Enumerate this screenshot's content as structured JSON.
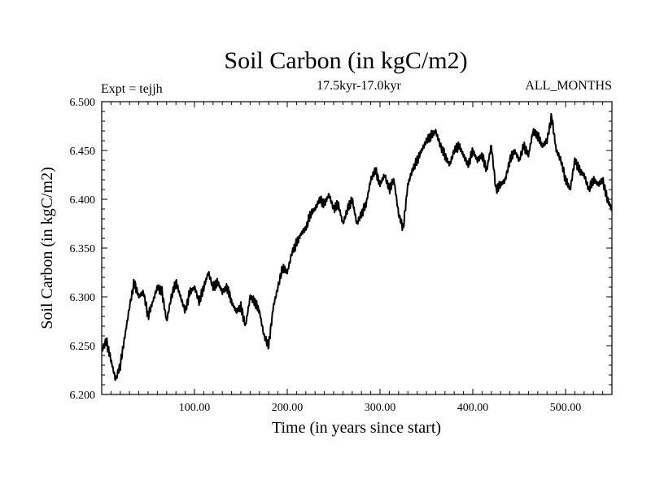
{
  "chart_data": {
    "type": "line",
    "title": "Soil Carbon (in kgC/m2)",
    "subtitle": "17.5kyr-17.0kyr",
    "left_note": "Expt = tejjh",
    "right_note": "ALL_MONTHS",
    "xlabel": "Time (in years since start)",
    "ylabel": "Soil Carbon (in kgC/m2)",
    "xlim": [
      0,
      550
    ],
    "ylim": [
      6.2,
      6.5
    ],
    "x_ticks": [
      100,
      200,
      300,
      400,
      500
    ],
    "x_tick_labels": [
      "100.00",
      "200.00",
      "300.00",
      "400.00",
      "500.00"
    ],
    "y_ticks": [
      6.2,
      6.25,
      6.3,
      6.35,
      6.4,
      6.45,
      6.5
    ],
    "y_tick_labels": [
      "6.200",
      "6.250",
      "6.300",
      "6.350",
      "6.400",
      "6.450",
      "6.500"
    ],
    "grid": false,
    "series": [
      {
        "name": "Soil Carbon",
        "color": "#000000",
        "x": [
          0,
          5,
          10,
          15,
          20,
          25,
          30,
          35,
          40,
          45,
          50,
          55,
          60,
          65,
          70,
          75,
          80,
          85,
          90,
          95,
          100,
          105,
          110,
          115,
          120,
          125,
          130,
          135,
          140,
          145,
          150,
          155,
          160,
          165,
          170,
          175,
          180,
          185,
          190,
          195,
          200,
          205,
          210,
          215,
          220,
          225,
          230,
          235,
          240,
          245,
          250,
          255,
          260,
          265,
          270,
          275,
          280,
          285,
          290,
          295,
          300,
          305,
          310,
          315,
          320,
          325,
          330,
          335,
          340,
          345,
          350,
          355,
          360,
          365,
          370,
          375,
          380,
          385,
          390,
          395,
          400,
          405,
          410,
          415,
          420,
          425,
          430,
          435,
          440,
          445,
          450,
          455,
          460,
          465,
          470,
          475,
          480,
          485,
          490,
          495,
          500,
          505,
          510,
          515,
          520,
          525,
          530,
          535,
          540,
          545,
          550
        ],
        "values": [
          6.245,
          6.255,
          6.235,
          6.215,
          6.23,
          6.26,
          6.29,
          6.315,
          6.3,
          6.305,
          6.28,
          6.295,
          6.31,
          6.305,
          6.275,
          6.3,
          6.315,
          6.3,
          6.285,
          6.305,
          6.31,
          6.295,
          6.31,
          6.325,
          6.31,
          6.315,
          6.305,
          6.31,
          6.295,
          6.285,
          6.29,
          6.27,
          6.3,
          6.295,
          6.285,
          6.26,
          6.25,
          6.29,
          6.31,
          6.33,
          6.325,
          6.345,
          6.355,
          6.365,
          6.37,
          6.385,
          6.39,
          6.4,
          6.395,
          6.405,
          6.39,
          6.395,
          6.375,
          6.39,
          6.4,
          6.375,
          6.385,
          6.395,
          6.42,
          6.43,
          6.415,
          6.425,
          6.41,
          6.42,
          6.385,
          6.37,
          6.415,
          6.43,
          6.44,
          6.45,
          6.46,
          6.465,
          6.47,
          6.455,
          6.445,
          6.435,
          6.45,
          6.455,
          6.445,
          6.435,
          6.45,
          6.44,
          6.445,
          6.43,
          6.455,
          6.41,
          6.415,
          6.42,
          6.44,
          6.45,
          6.44,
          6.455,
          6.445,
          6.47,
          6.465,
          6.455,
          6.46,
          6.485,
          6.45,
          6.44,
          6.42,
          6.41,
          6.44,
          6.43,
          6.425,
          6.41,
          6.42,
          6.415,
          6.42,
          6.4,
          6.39
        ]
      }
    ]
  }
}
